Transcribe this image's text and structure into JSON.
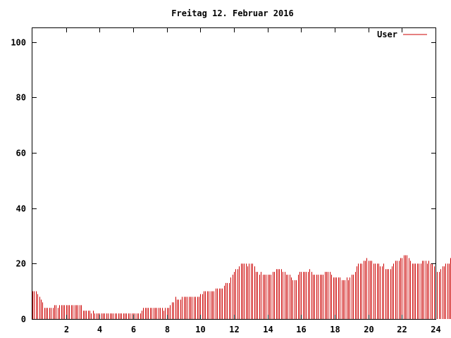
{
  "chart_data": {
    "type": "bar",
    "title": "Freitag 12. Februar 2016",
    "xlabel": "",
    "ylabel": "",
    "xlim": [
      0,
      24
    ],
    "ylim": [
      0,
      105
    ],
    "x_ticks": [
      2,
      4,
      6,
      8,
      10,
      12,
      14,
      16,
      18,
      20,
      22,
      24
    ],
    "y_ticks": [
      0,
      20,
      40,
      60,
      80,
      100
    ],
    "grid": false,
    "legend_position": "top-right",
    "series": [
      {
        "name": "User",
        "color": "#cc0000",
        "interval_hours": 0.1,
        "values": [
          10,
          10,
          10,
          9,
          8,
          7,
          6,
          4,
          4,
          4,
          4,
          4,
          4,
          5,
          5,
          4,
          5,
          5,
          5,
          5,
          5,
          5,
          5,
          5,
          5,
          5,
          5,
          5,
          5,
          5,
          3,
          3,
          3,
          3,
          3,
          2,
          3,
          2,
          2,
          2,
          2,
          2,
          2,
          2,
          2,
          2,
          2,
          2,
          2,
          2,
          2,
          2,
          2,
          2,
          2,
          2,
          2,
          2,
          2,
          2,
          2,
          2,
          2,
          2,
          2,
          3,
          4,
          4,
          4,
          4,
          4,
          4,
          4,
          4,
          4,
          4,
          4,
          4,
          3,
          4,
          4,
          4,
          5,
          6,
          6,
          8,
          7,
          7,
          7,
          8,
          8,
          8,
          8,
          8,
          8,
          8,
          8,
          8,
          8,
          8,
          9,
          9,
          10,
          10,
          10,
          10,
          10,
          10,
          10,
          11,
          11,
          11,
          11,
          11,
          12,
          13,
          13,
          13,
          15,
          16,
          17,
          18,
          18,
          19,
          20,
          20,
          20,
          20,
          19,
          20,
          20,
          20,
          19,
          17,
          17,
          16,
          17,
          16,
          16,
          16,
          16,
          16,
          16,
          17,
          17,
          18,
          18,
          18,
          18,
          17,
          17,
          16,
          16,
          16,
          15,
          14,
          14,
          14,
          16,
          17,
          17,
          17,
          17,
          17,
          17,
          18,
          17,
          16,
          16,
          16,
          16,
          16,
          16,
          16,
          17,
          17,
          17,
          17,
          16,
          15,
          15,
          15,
          15,
          15,
          14,
          14,
          14,
          15,
          14,
          15,
          16,
          16,
          17,
          19,
          20,
          20,
          20,
          21,
          21,
          22,
          21,
          21,
          21,
          20,
          20,
          20,
          20,
          19,
          19,
          20,
          18,
          18,
          18,
          18,
          19,
          20,
          21,
          21,
          21,
          22,
          22,
          23,
          23,
          23,
          22,
          21,
          20,
          20,
          20,
          20,
          20,
          20,
          21,
          21,
          21,
          20,
          21,
          20,
          20,
          19,
          18,
          17,
          17,
          18,
          19,
          19,
          20,
          20,
          20,
          22,
          20
        ]
      }
    ]
  }
}
